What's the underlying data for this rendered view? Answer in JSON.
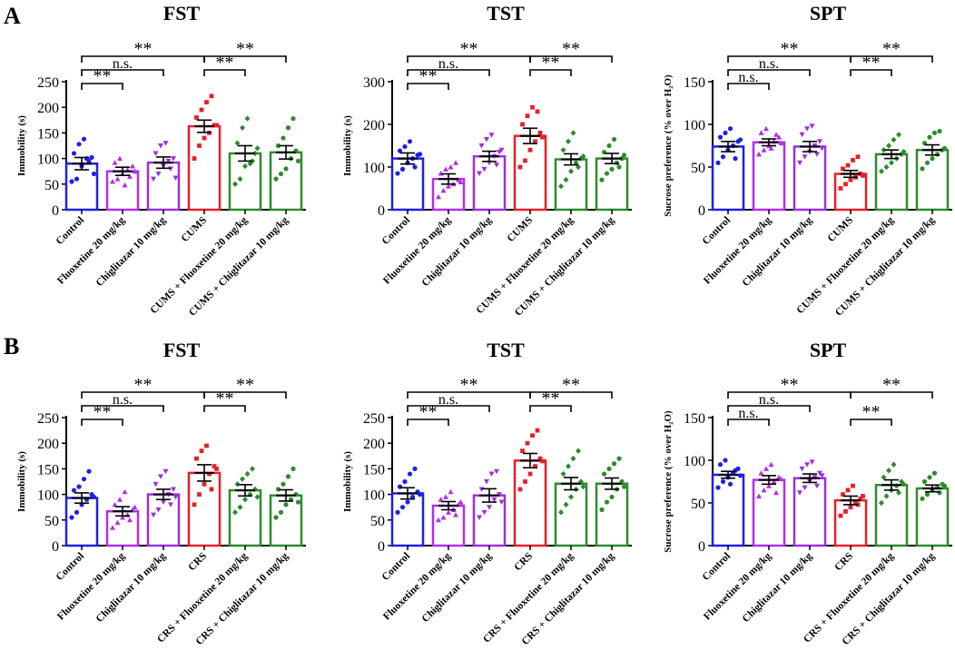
{
  "colors": {
    "control": "#1f1fe6",
    "fluoxetine": "#b22fe8",
    "chiglitazar": "#9b30dd",
    "stress": "#e6202a",
    "stress_fluoxetine": "#2e8b2e",
    "stress_chiglitazar": "#2e8b2e",
    "axis": "#000000"
  },
  "panels": [
    {
      "label": "A"
    },
    {
      "label": "B"
    }
  ],
  "chart_data": [
    {
      "type": "bar",
      "panel": "A",
      "title": "FST",
      "ylabel": "Immobility (s)",
      "ylim": [
        0,
        250
      ],
      "yticks": [
        0,
        50,
        100,
        150,
        200,
        250
      ],
      "categories": [
        "Control",
        "Fluoxetine 20 mg/kg",
        "Chiglitazar 10 mg/kg",
        "CUMS",
        "CUMS + Fluoxetine 20 mg/kg",
        "CUMS + Chiglitazar 10 mg/kg"
      ],
      "values": [
        90,
        75,
        92,
        163,
        110,
        112
      ],
      "errors": [
        12,
        8,
        11,
        12,
        15,
        13
      ],
      "points": [
        [
          55,
          60,
          85,
          100,
          102,
          110,
          128,
          138,
          95,
          70
        ],
        [
          55,
          60,
          70,
          78,
          85,
          92,
          100,
          48,
          65,
          75
        ],
        [
          60,
          70,
          85,
          95,
          100,
          110,
          125,
          130,
          80,
          62
        ],
        [
          100,
          125,
          140,
          150,
          165,
          180,
          195,
          210,
          222,
          165
        ],
        [
          50,
          60,
          85,
          90,
          110,
          130,
          160,
          178,
          95,
          120
        ],
        [
          60,
          70,
          80,
          100,
          115,
          125,
          140,
          160,
          178,
          95
        ]
      ],
      "comparisons": [
        {
          "from": 0,
          "to": 3,
          "label": "**",
          "level": 2
        },
        {
          "from": 3,
          "to": 5,
          "label": "**",
          "level": 2
        },
        {
          "from": 0,
          "to": 2,
          "label": "n.s.",
          "level": 1
        },
        {
          "from": 3,
          "to": 4,
          "label": "**",
          "level": 1
        },
        {
          "from": 0,
          "to": 1,
          "label": "**",
          "level": 0
        }
      ]
    },
    {
      "type": "bar",
      "panel": "A",
      "title": "TST",
      "ylabel": "Immobility (s)",
      "ylim": [
        0,
        300
      ],
      "yticks": [
        0,
        100,
        200,
        300
      ],
      "categories": [
        "Control",
        "Fluoxetine 20 mg/kg",
        "Chiglitazar 10 mg/kg",
        "CUMS",
        "CUMS + Fluoxetine 20 mg/kg",
        "CUMS + Chiglitazar 10 mg/kg"
      ],
      "values": [
        120,
        72,
        125,
        173,
        118,
        120
      ],
      "errors": [
        13,
        12,
        12,
        18,
        13,
        12
      ],
      "points": [
        [
          85,
          95,
          110,
          120,
          128,
          138,
          148,
          160,
          100,
          130
        ],
        [
          30,
          45,
          55,
          60,
          70,
          85,
          95,
          100,
          110,
          65
        ],
        [
          85,
          95,
          110,
          125,
          135,
          150,
          165,
          175,
          105,
          140
        ],
        [
          100,
          115,
          140,
          160,
          180,
          200,
          220,
          240,
          230,
          170
        ],
        [
          55,
          70,
          90,
          110,
          120,
          140,
          160,
          180,
          100,
          125
        ],
        [
          70,
          85,
          95,
          110,
          120,
          135,
          150,
          165,
          100,
          128
        ]
      ],
      "comparisons": [
        {
          "from": 0,
          "to": 3,
          "label": "**",
          "level": 2
        },
        {
          "from": 3,
          "to": 5,
          "label": "**",
          "level": 2
        },
        {
          "from": 0,
          "to": 2,
          "label": "n.s.",
          "level": 1
        },
        {
          "from": 3,
          "to": 4,
          "label": "**",
          "level": 1
        },
        {
          "from": 0,
          "to": 1,
          "label": "**",
          "level": 0
        }
      ]
    },
    {
      "type": "bar",
      "panel": "A",
      "title": "SPT",
      "ylabel": "Sucrose preference (% over H₂O)",
      "ylim": [
        0,
        150
      ],
      "yticks": [
        0,
        50,
        100,
        150
      ],
      "categories": [
        "Control",
        "Fluoxetine 20 mg/kg",
        "Chiglitazar 10 mg/kg",
        "CUMS",
        "CUMS + Fluoxetine 20 mg/kg",
        "CUMS + Chiglitazar 10 mg/kg"
      ],
      "values": [
        74,
        79,
        74,
        42,
        65,
        70
      ],
      "errors": [
        6,
        4,
        6,
        4,
        5,
        6
      ],
      "points": [
        [
          55,
          62,
          70,
          75,
          80,
          85,
          90,
          95,
          60,
          82
        ],
        [
          65,
          70,
          75,
          80,
          85,
          90,
          95,
          72,
          88,
          78
        ],
        [
          55,
          62,
          68,
          75,
          80,
          88,
          95,
          98,
          65,
          72
        ],
        [
          25,
          30,
          35,
          38,
          42,
          48,
          52,
          58,
          62,
          40
        ],
        [
          45,
          50,
          55,
          60,
          65,
          70,
          75,
          82,
          88,
          68
        ],
        [
          48,
          55,
          60,
          65,
          70,
          78,
          85,
          90,
          92,
          72
        ]
      ],
      "comparisons": [
        {
          "from": 0,
          "to": 3,
          "label": "**",
          "level": 2
        },
        {
          "from": 3,
          "to": 5,
          "label": "**",
          "level": 2
        },
        {
          "from": 0,
          "to": 2,
          "label": "n.s.",
          "level": 1
        },
        {
          "from": 3,
          "to": 4,
          "label": "**",
          "level": 1
        },
        {
          "from": 0,
          "to": 1,
          "label": "n.s.",
          "level": 0
        }
      ]
    },
    {
      "type": "bar",
      "panel": "B",
      "title": "FST",
      "ylabel": "Immobility (s)",
      "ylim": [
        0,
        250
      ],
      "yticks": [
        0,
        50,
        100,
        150,
        200,
        250
      ],
      "categories": [
        "Control",
        "Fluoxetine 20 mg/kg",
        "Chiglitazar 10 mg/kg",
        "CRS",
        "CRS + Fluoxetine 20 mg/kg",
        "CRS + Chiglitazar 10 mg/kg"
      ],
      "values": [
        93,
        67,
        100,
        142,
        108,
        98
      ],
      "errors": [
        10,
        9,
        10,
        16,
        11,
        11
      ],
      "points": [
        [
          55,
          65,
          80,
          90,
          100,
          108,
          115,
          130,
          145,
          95
        ],
        [
          35,
          45,
          55,
          60,
          70,
          80,
          90,
          105,
          50,
          75
        ],
        [
          60,
          70,
          85,
          100,
          110,
          120,
          135,
          145,
          80,
          95
        ],
        [
          80,
          100,
          120,
          140,
          155,
          170,
          185,
          195,
          110,
          150
        ],
        [
          65,
          75,
          90,
          100,
          110,
          120,
          130,
          140,
          150,
          95
        ],
        [
          55,
          65,
          80,
          90,
          100,
          110,
          120,
          135,
          150,
          85
        ]
      ],
      "comparisons": [
        {
          "from": 0,
          "to": 3,
          "label": "**",
          "level": 2
        },
        {
          "from": 3,
          "to": 5,
          "label": "**",
          "level": 2
        },
        {
          "from": 0,
          "to": 2,
          "label": "n.s.",
          "level": 1
        },
        {
          "from": 3,
          "to": 4,
          "label": "**",
          "level": 1
        },
        {
          "from": 0,
          "to": 1,
          "label": "**",
          "level": 0
        }
      ]
    },
    {
      "type": "bar",
      "panel": "B",
      "title": "TST",
      "ylabel": "Immobility (s)",
      "ylim": [
        0,
        250
      ],
      "yticks": [
        0,
        50,
        100,
        150,
        200,
        250
      ],
      "categories": [
        "Control",
        "Fluoxetine 20 mg/kg",
        "Chiglitazar 10 mg/kg",
        "CRS",
        "CRS + Fluoxetine 20 mg/kg",
        "CRS + Chiglitazar 10 mg/kg"
      ],
      "values": [
        102,
        78,
        98,
        166,
        121,
        121
      ],
      "errors": [
        11,
        8,
        13,
        14,
        12,
        11
      ],
      "points": [
        [
          65,
          75,
          85,
          95,
          105,
          115,
          125,
          140,
          150,
          100
        ],
        [
          50,
          55,
          65,
          70,
          80,
          90,
          95,
          105,
          60,
          85
        ],
        [
          55,
          65,
          75,
          90,
          100,
          110,
          125,
          140,
          145,
          85
        ],
        [
          110,
          125,
          140,
          155,
          170,
          185,
          200,
          215,
          225,
          165
        ],
        [
          65,
          80,
          95,
          110,
          125,
          140,
          155,
          170,
          185,
          115
        ],
        [
          70,
          85,
          95,
          110,
          125,
          140,
          150,
          160,
          170,
          115
        ]
      ],
      "comparisons": [
        {
          "from": 0,
          "to": 3,
          "label": "**",
          "level": 2
        },
        {
          "from": 3,
          "to": 5,
          "label": "**",
          "level": 2
        },
        {
          "from": 0,
          "to": 2,
          "label": "n.s.",
          "level": 1
        },
        {
          "from": 3,
          "to": 4,
          "label": "**",
          "level": 1
        },
        {
          "from": 0,
          "to": 1,
          "label": "**",
          "level": 0
        }
      ]
    },
    {
      "type": "bar",
      "panel": "B",
      "title": "SPT",
      "ylabel": "Sucrose preference (% over H₂O)",
      "ylim": [
        0,
        150
      ],
      "yticks": [
        0,
        50,
        100,
        150
      ],
      "categories": [
        "Control",
        "Fluoxetine 20 mg/kg",
        "Chiglitazar 10 mg/kg",
        "CRS",
        "CRS + Fluoxetine 20 mg/kg",
        "CRS + Chiglitazar 10 mg/kg"
      ],
      "values": [
        83,
        77,
        79,
        53,
        71,
        67
      ],
      "errors": [
        4,
        5,
        5,
        5,
        6,
        4
      ],
      "points": [
        [
          68,
          75,
          80,
          85,
          90,
          95,
          100,
          72,
          88,
          82
        ],
        [
          58,
          65,
          70,
          75,
          80,
          85,
          90,
          95,
          62,
          78
        ],
        [
          62,
          68,
          75,
          80,
          85,
          90,
          95,
          98,
          70,
          82
        ],
        [
          35,
          40,
          45,
          50,
          55,
          60,
          65,
          70,
          48,
          58
        ],
        [
          50,
          58,
          65,
          70,
          75,
          80,
          88,
          95,
          62,
          72
        ],
        [
          55,
          60,
          65,
          68,
          72,
          75,
          80,
          85,
          62,
          70
        ]
      ],
      "comparisons": [
        {
          "from": 0,
          "to": 3,
          "label": "**",
          "level": 2
        },
        {
          "from": 3,
          "to": 5,
          "label": "**",
          "level": 2
        },
        {
          "from": 0,
          "to": 2,
          "label": "n.s.",
          "level": 1
        },
        {
          "from": 3,
          "to": 4,
          "label": "**",
          "level": 0
        },
        {
          "from": 0,
          "to": 1,
          "label": "n.s.",
          "level": 0
        }
      ]
    }
  ]
}
